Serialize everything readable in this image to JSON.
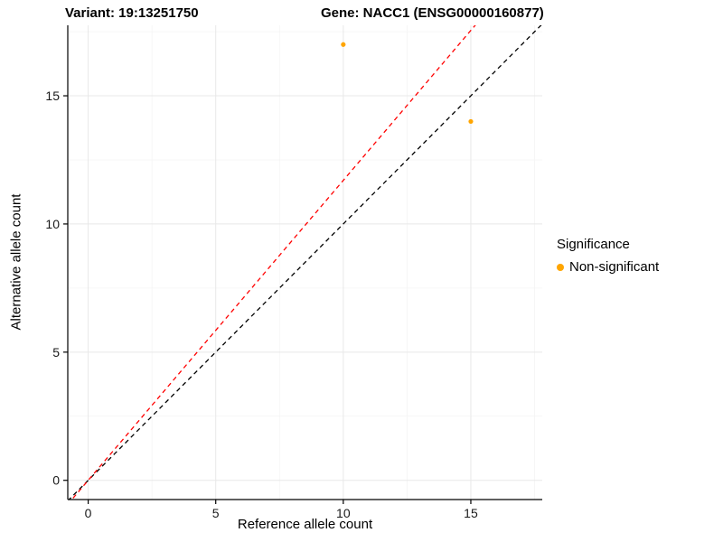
{
  "titles": {
    "variant": "Variant: 19:13251750",
    "gene": "Gene: NACC1 (ENSG00000160877)"
  },
  "axes": {
    "x": {
      "label": "Reference allele count",
      "ticks": [
        0,
        5,
        10,
        15
      ],
      "minor_ticks": [
        2.5,
        7.5,
        12.5,
        17.5
      ],
      "lim": [
        -0.8,
        17.8
      ]
    },
    "y": {
      "label": "Alternative allele count",
      "ticks": [
        0,
        5,
        10,
        15
      ],
      "minor_ticks": [
        2.5,
        7.5,
        12.5,
        17.5
      ],
      "lim": [
        -0.75,
        17.75
      ]
    }
  },
  "legend": {
    "title": "Significance",
    "items": [
      {
        "label": "Non-significant",
        "color": "#FFA500"
      }
    ]
  },
  "colors": {
    "point": "#FFA500",
    "grid_major": "#E8E8E8",
    "grid_minor": "#F4F4F4",
    "axis": "#000000",
    "identity_line": "#000000",
    "expected_line": "#FF0000",
    "tick_label": "#1a1a1a"
  },
  "chart_data": {
    "type": "scatter",
    "title": "Variant: 19:13251750 — Gene: NACC1 (ENSG00000160877)",
    "xlabel": "Reference allele count",
    "ylabel": "Alternative allele count",
    "xlim": [
      -0.8,
      17.8
    ],
    "ylim": [
      -0.75,
      17.75
    ],
    "xticks": [
      0,
      5,
      10,
      15
    ],
    "yticks": [
      0,
      5,
      10,
      15
    ],
    "grid": true,
    "legend_position": "right",
    "series": [
      {
        "name": "Non-significant",
        "color": "#FFA500",
        "points": [
          {
            "x": 10,
            "y": 17
          },
          {
            "x": 15,
            "y": 14
          }
        ]
      }
    ],
    "lines": [
      {
        "name": "identity-line",
        "slope": 1,
        "intercept": 0,
        "color": "#000000",
        "dash": "5,4"
      },
      {
        "name": "expected-ratio-line",
        "slope": 1.17,
        "intercept": 0,
        "color": "#FF0000",
        "dash": "5,4"
      }
    ]
  }
}
